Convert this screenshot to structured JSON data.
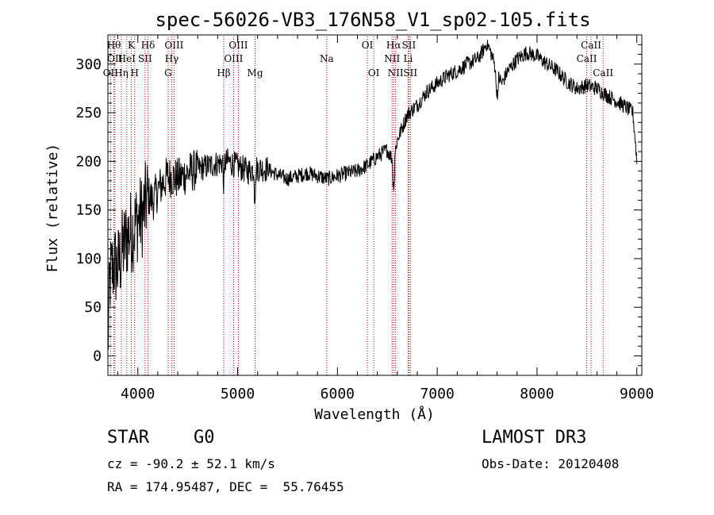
{
  "chart_data": {
    "type": "line",
    "title": "spec-56026-VB3_176N58_V1_sp02-105.fits",
    "xlabel": "Wavelength (Å)",
    "ylabel": "Flux (relative)",
    "xlim": [
      3700,
      9050
    ],
    "ylim": [
      -20,
      330
    ],
    "xticks": [
      4000,
      5000,
      6000,
      7000,
      8000,
      9000
    ],
    "yticks": [
      0,
      50,
      100,
      150,
      200,
      250,
      300
    ],
    "spectrum_anchors": [
      [
        3700,
        10
      ],
      [
        3720,
        80
      ],
      [
        3760,
        95
      ],
      [
        3800,
        90
      ],
      [
        3850,
        110
      ],
      [
        3900,
        125
      ],
      [
        3950,
        130
      ],
      [
        4000,
        140
      ],
      [
        4050,
        145
      ],
      [
        4100,
        165
      ],
      [
        4150,
        160
      ],
      [
        4200,
        170
      ],
      [
        4300,
        185
      ],
      [
        4400,
        182
      ],
      [
        4500,
        188
      ],
      [
        4600,
        192
      ],
      [
        4700,
        195
      ],
      [
        4800,
        198
      ],
      [
        4900,
        200
      ],
      [
        5000,
        195
      ],
      [
        5100,
        190
      ],
      [
        5200,
        193
      ],
      [
        5300,
        192
      ],
      [
        5400,
        186
      ],
      [
        5500,
        182
      ],
      [
        5600,
        185
      ],
      [
        5700,
        188
      ],
      [
        5800,
        185
      ],
      [
        5900,
        182
      ],
      [
        6000,
        185
      ],
      [
        6100,
        188
      ],
      [
        6200,
        190
      ],
      [
        6300,
        196
      ],
      [
        6400,
        205
      ],
      [
        6500,
        212
      ],
      [
        6560,
        200
      ],
      [
        6600,
        222
      ],
      [
        6650,
        235
      ],
      [
        6700,
        248
      ],
      [
        6800,
        258
      ],
      [
        6900,
        272
      ],
      [
        7000,
        280
      ],
      [
        7100,
        288
      ],
      [
        7200,
        293
      ],
      [
        7300,
        300
      ],
      [
        7400,
        305
      ],
      [
        7450,
        312
      ],
      [
        7500,
        322
      ],
      [
        7550,
        308
      ],
      [
        7600,
        290
      ],
      [
        7650,
        280
      ],
      [
        7700,
        292
      ],
      [
        7800,
        305
      ],
      [
        7900,
        312
      ],
      [
        8000,
        308
      ],
      [
        8100,
        300
      ],
      [
        8200,
        293
      ],
      [
        8300,
        282
      ],
      [
        8400,
        275
      ],
      [
        8500,
        278
      ],
      [
        8600,
        275
      ],
      [
        8700,
        268
      ],
      [
        8800,
        262
      ],
      [
        8900,
        255
      ],
      [
        8960,
        250
      ],
      [
        8990,
        215
      ],
      [
        9000,
        200
      ]
    ],
    "spectral_lines": [
      {
        "wavelength": 3727,
        "label": "OII",
        "row": 3
      },
      {
        "wavelength": 3760,
        "label": "Hθ",
        "row": 1
      },
      {
        "wavelength": 3770,
        "label": "OII",
        "row": 2
      },
      {
        "wavelength": 3835,
        "label": "Hη",
        "row": 3
      },
      {
        "wavelength": 3889,
        "label": "HeI",
        "row": 2
      },
      {
        "wavelength": 3934,
        "label": "K",
        "row": 1
      },
      {
        "wavelength": 3968,
        "label": "H",
        "row": 3
      },
      {
        "wavelength": 4072,
        "label": "SII",
        "row": 2
      },
      {
        "wavelength": 4102,
        "label": "Hδ",
        "row": 1
      },
      {
        "wavelength": 4304,
        "label": "G",
        "row": 3
      },
      {
        "wavelength": 4340,
        "label": "Hγ",
        "row": 2
      },
      {
        "wavelength": 4363,
        "label": "OIII",
        "row": 1
      },
      {
        "wavelength": 4861,
        "label": "Hβ",
        "row": 3
      },
      {
        "wavelength": 4959,
        "label": "OIII",
        "row": 2
      },
      {
        "wavelength": 5007,
        "label": "OIII",
        "row": 1
      },
      {
        "wavelength": 5175,
        "label": "Mg",
        "row": 3
      },
      {
        "wavelength": 5893,
        "label": "Na",
        "row": 2
      },
      {
        "wavelength": 6300,
        "label": "OI",
        "row": 1
      },
      {
        "wavelength": 6364,
        "label": "OI",
        "row": 3
      },
      {
        "wavelength": 6548,
        "label": "NII",
        "row": 2
      },
      {
        "wavelength": 6563,
        "label": "Hα",
        "row": 1
      },
      {
        "wavelength": 6583,
        "label": "NII",
        "row": 3
      },
      {
        "wavelength": 6708,
        "label": "Li",
        "row": 2
      },
      {
        "wavelength": 6716,
        "label": "SII",
        "row": 1
      },
      {
        "wavelength": 6731,
        "label": "SII",
        "row": 3
      },
      {
        "wavelength": 8498,
        "label": "CaII",
        "row": 2
      },
      {
        "wavelength": 8542,
        "label": "CaII",
        "row": 1
      },
      {
        "wavelength": 8662,
        "label": "CaII",
        "row": 3
      }
    ]
  },
  "info": {
    "object_class": "STAR",
    "subclass": "G0",
    "survey": "LAMOST DR3",
    "redshift": "cz = -90.2 ± 52.1 km/s",
    "obs_date": "Obs-Date: 20120408",
    "coords": "RA = 174.95487, DEC =  55.76455"
  },
  "colors": {
    "spectrum": "#000000",
    "line_markers": "#c00000",
    "axes": "#000000"
  }
}
